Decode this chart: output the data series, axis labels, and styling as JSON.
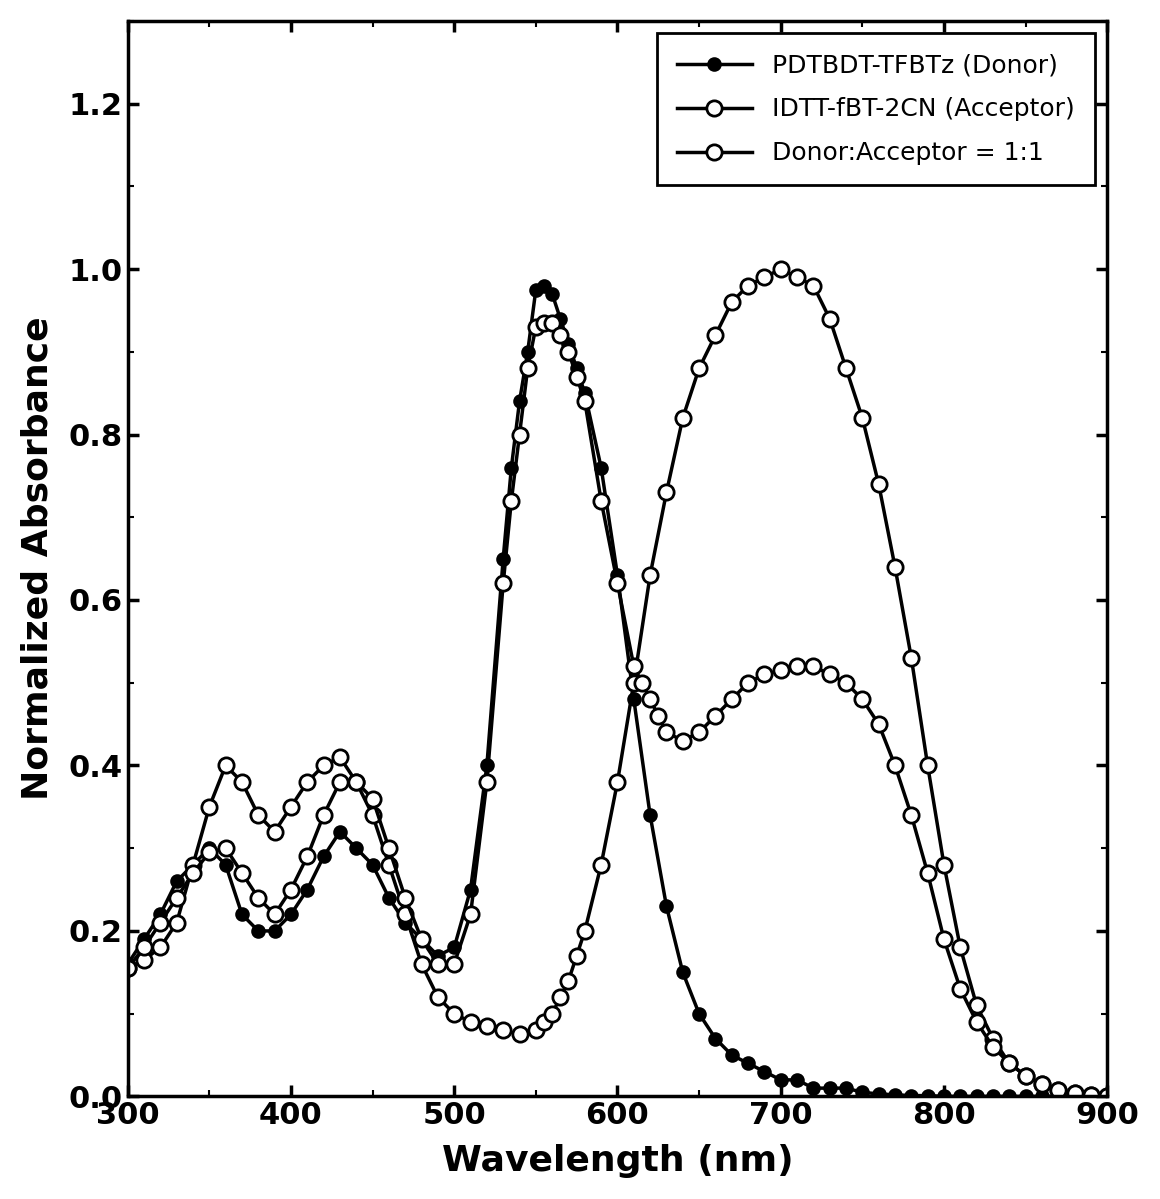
{
  "title": "",
  "xlabel": "Wavelength (nm)",
  "ylabel": "Normalized Absorbance",
  "xlim": [
    300,
    900
  ],
  "ylim": [
    0,
    1.3
  ],
  "yticks": [
    0,
    0.2,
    0.4,
    0.6,
    0.8,
    1.0,
    1.2
  ],
  "xticks": [
    300,
    400,
    500,
    600,
    700,
    800,
    900
  ],
  "donor_x": [
    300,
    310,
    320,
    330,
    340,
    350,
    360,
    370,
    380,
    390,
    400,
    410,
    420,
    430,
    440,
    450,
    460,
    470,
    480,
    490,
    500,
    510,
    520,
    530,
    535,
    540,
    545,
    550,
    555,
    560,
    565,
    570,
    575,
    580,
    590,
    600,
    610,
    620,
    630,
    640,
    650,
    660,
    670,
    680,
    690,
    700,
    710,
    720,
    730,
    740,
    750,
    760,
    770,
    780,
    790,
    800,
    810,
    820,
    830,
    840,
    850,
    860,
    870,
    880,
    890,
    900
  ],
  "donor_y": [
    0.16,
    0.19,
    0.22,
    0.26,
    0.28,
    0.3,
    0.28,
    0.22,
    0.2,
    0.2,
    0.22,
    0.25,
    0.29,
    0.32,
    0.3,
    0.28,
    0.24,
    0.21,
    0.19,
    0.17,
    0.18,
    0.25,
    0.4,
    0.65,
    0.76,
    0.84,
    0.9,
    0.975,
    0.98,
    0.97,
    0.94,
    0.91,
    0.88,
    0.85,
    0.76,
    0.63,
    0.48,
    0.34,
    0.23,
    0.15,
    0.1,
    0.07,
    0.05,
    0.04,
    0.03,
    0.02,
    0.02,
    0.01,
    0.01,
    0.01,
    0.005,
    0.003,
    0.002,
    0.001,
    0.001,
    0.0,
    0.0,
    0.0,
    0.0,
    0.0,
    0.0,
    0.0,
    0.0,
    0.0,
    0.0,
    0.0
  ],
  "acceptor_x": [
    300,
    310,
    320,
    330,
    340,
    350,
    360,
    370,
    380,
    390,
    400,
    410,
    420,
    430,
    440,
    450,
    460,
    470,
    480,
    490,
    500,
    510,
    520,
    530,
    540,
    550,
    555,
    560,
    565,
    570,
    575,
    580,
    590,
    600,
    610,
    620,
    630,
    640,
    650,
    660,
    670,
    680,
    690,
    700,
    710,
    720,
    730,
    740,
    750,
    760,
    770,
    780,
    790,
    800,
    810,
    820,
    830,
    840,
    850,
    860,
    870,
    880,
    890,
    900
  ],
  "acceptor_y": [
    0.155,
    0.165,
    0.18,
    0.21,
    0.28,
    0.35,
    0.4,
    0.38,
    0.34,
    0.32,
    0.35,
    0.38,
    0.4,
    0.41,
    0.38,
    0.34,
    0.28,
    0.22,
    0.16,
    0.12,
    0.1,
    0.09,
    0.085,
    0.08,
    0.075,
    0.08,
    0.09,
    0.1,
    0.12,
    0.14,
    0.17,
    0.2,
    0.28,
    0.38,
    0.5,
    0.63,
    0.73,
    0.82,
    0.88,
    0.92,
    0.96,
    0.98,
    0.99,
    1.0,
    0.99,
    0.98,
    0.94,
    0.88,
    0.82,
    0.74,
    0.64,
    0.53,
    0.4,
    0.28,
    0.18,
    0.11,
    0.07,
    0.04,
    0.025,
    0.015,
    0.008,
    0.004,
    0.002,
    0.001
  ],
  "blend_x": [
    300,
    310,
    320,
    330,
    340,
    350,
    360,
    370,
    380,
    390,
    400,
    410,
    420,
    430,
    440,
    450,
    460,
    470,
    480,
    490,
    500,
    510,
    520,
    530,
    535,
    540,
    545,
    550,
    555,
    560,
    565,
    570,
    575,
    580,
    590,
    600,
    610,
    615,
    620,
    625,
    630,
    640,
    650,
    660,
    670,
    680,
    690,
    700,
    710,
    720,
    730,
    740,
    750,
    760,
    770,
    780,
    790,
    800,
    810,
    820,
    830,
    840,
    850,
    860,
    870,
    880,
    890,
    900
  ],
  "blend_y": [
    0.155,
    0.18,
    0.21,
    0.24,
    0.27,
    0.295,
    0.3,
    0.27,
    0.24,
    0.22,
    0.25,
    0.29,
    0.34,
    0.38,
    0.38,
    0.36,
    0.3,
    0.24,
    0.19,
    0.16,
    0.16,
    0.22,
    0.38,
    0.62,
    0.72,
    0.8,
    0.88,
    0.93,
    0.935,
    0.935,
    0.92,
    0.9,
    0.87,
    0.84,
    0.72,
    0.62,
    0.52,
    0.5,
    0.48,
    0.46,
    0.44,
    0.43,
    0.44,
    0.46,
    0.48,
    0.5,
    0.51,
    0.515,
    0.52,
    0.52,
    0.51,
    0.5,
    0.48,
    0.45,
    0.4,
    0.34,
    0.27,
    0.19,
    0.13,
    0.09,
    0.06,
    0.04,
    0.025,
    0.015,
    0.008,
    0.004,
    0.002,
    0.001
  ],
  "line_color": "#000000",
  "line_width": 2.5,
  "marker_size_filled": 9,
  "marker_size_open": 11,
  "legend_loc": "upper right",
  "legend_labels": [
    "PDTBDT-TFBTz (Donor)",
    "IDTT-fBT-2CN (Acceptor)",
    "Donor:Acceptor = 1:1"
  ]
}
